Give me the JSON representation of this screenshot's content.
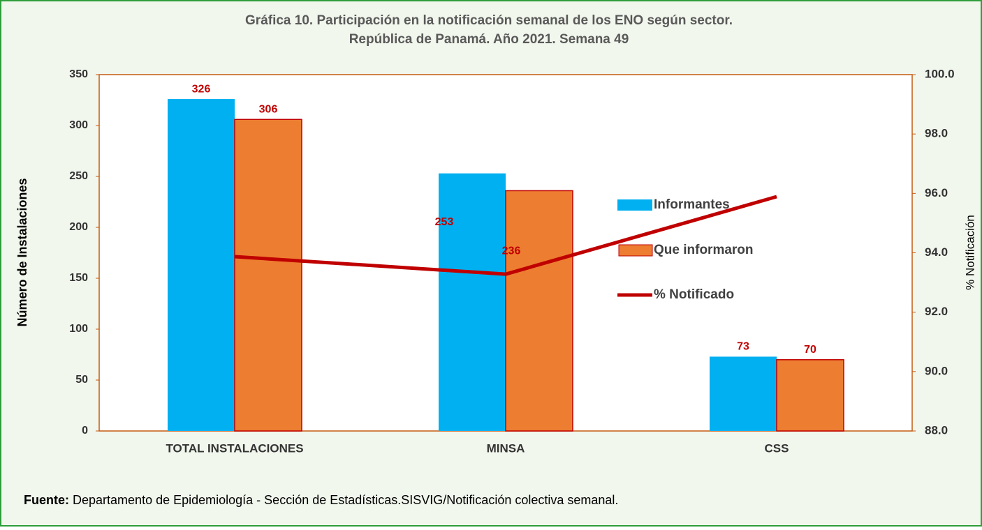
{
  "chart_data": {
    "type": "bar",
    "title": [
      "Gráfica 10. Participación en la notificación semanal  de los ENO según sector.",
      "República de Panamá. Año 2021. Semana 49"
    ],
    "categories": [
      "TOTAL INSTALACIONES",
      "MINSA",
      "CSS"
    ],
    "series": [
      {
        "name": "Informantes",
        "color": "#00b0f0",
        "values": [
          326,
          253,
          73
        ]
      },
      {
        "name": "Que informaron",
        "color": "#ed7d31",
        "values": [
          306,
          236,
          70
        ]
      },
      {
        "name": "% Notificado",
        "color": "#c00000",
        "type": "line",
        "axis": "y2",
        "values": [
          93.87,
          93.28,
          95.89
        ]
      }
    ],
    "ylabel": "Número de Instalaciones",
    "y2label": "% Notificación",
    "ylim": [
      0,
      350
    ],
    "yticks": [
      0,
      50,
      100,
      150,
      200,
      250,
      300,
      350
    ],
    "y2lim": [
      88,
      100
    ],
    "y2ticks": [
      {
        "value": 88,
        "label": "88.0"
      },
      {
        "value": 90,
        "label": "90.0"
      },
      {
        "value": 92,
        "label": "92.0"
      },
      {
        "value": 94,
        "label": "94.0"
      },
      {
        "value": 96,
        "label": "96.0"
      },
      {
        "value": 98,
        "label": "98.0"
      },
      {
        "value": 100,
        "label": "100.0"
      }
    ],
    "source": {
      "label": "Fuente:",
      "text": "Departamento de Epidemiología - Sección de Estadísticas.SISVIG/Notificación colectiva semanal."
    }
  }
}
